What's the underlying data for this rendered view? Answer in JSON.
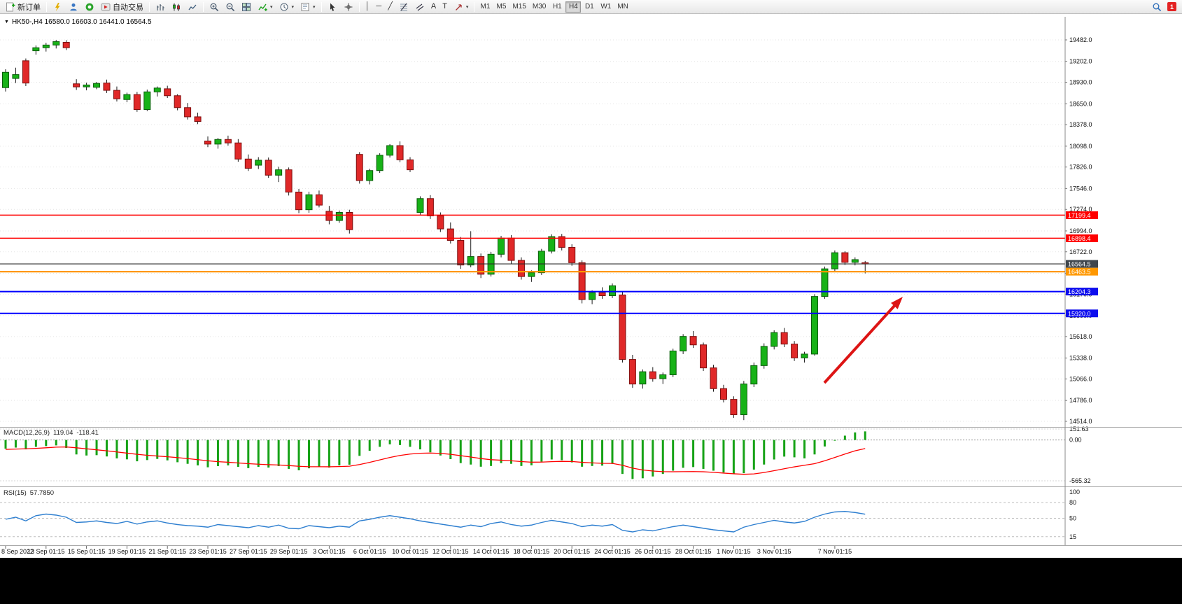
{
  "toolbar": {
    "new_order": "新订单",
    "autotrading": "自动交易",
    "timeframes": [
      "M1",
      "M5",
      "M15",
      "M30",
      "H1",
      "H4",
      "D1",
      "W1",
      "MN"
    ],
    "active_timeframe": "H4",
    "notification_count": "1"
  },
  "icons": {
    "caret_down": "▼",
    "menu_caret": "▾",
    "vline": "│",
    "hline": "─",
    "trend": "╱",
    "text": "A",
    "text_label": "T"
  },
  "chart": {
    "title": "HK50-,H4 16580.0 16603.0 16441.0 16564.5",
    "symbol": "HK50-",
    "period": "H4"
  },
  "chart_data": {
    "type": "candlestick",
    "main": {
      "y_axis": [
        19482.0,
        19202.0,
        18930.0,
        18650.0,
        18378.0,
        18098.0,
        17826.0,
        17546.0,
        17274.0,
        16994.0,
        16722.0,
        16442.0,
        16170.0,
        15890.0,
        15618.0,
        15338.0,
        15066.0,
        14786.0,
        14514.0
      ],
      "candles": [
        [
          18860,
          19100,
          18810,
          19060
        ],
        [
          18980,
          19120,
          18920,
          19030
        ],
        [
          19210,
          19240,
          18880,
          18920
        ],
        [
          19340,
          19410,
          19290,
          19380
        ],
        [
          19380,
          19445,
          19330,
          19415
        ],
        [
          19415,
          19480,
          19370,
          19460
        ],
        [
          19450,
          19478,
          19350,
          19380
        ],
        [
          18910,
          18970,
          18830,
          18870
        ],
        [
          18870,
          18925,
          18825,
          18895
        ],
        [
          18865,
          18935,
          18840,
          18915
        ],
        [
          18920,
          18965,
          18790,
          18825
        ],
        [
          18825,
          18875,
          18680,
          18715
        ],
        [
          18705,
          18795,
          18670,
          18770
        ],
        [
          18770,
          18805,
          18545,
          18575
        ],
        [
          18575,
          18835,
          18555,
          18805
        ],
        [
          18805,
          18875,
          18745,
          18855
        ],
        [
          18845,
          18885,
          18725,
          18755
        ],
        [
          18755,
          18775,
          18565,
          18600
        ],
        [
          18600,
          18660,
          18445,
          18480
        ],
        [
          18480,
          18535,
          18385,
          18420
        ],
        [
          18165,
          18225,
          18085,
          18125
        ],
        [
          18125,
          18205,
          18065,
          18185
        ],
        [
          18185,
          18235,
          18105,
          18140
        ],
        [
          18140,
          18190,
          17895,
          17930
        ],
        [
          17930,
          17990,
          17775,
          17810
        ],
        [
          17850,
          17955,
          17800,
          17915
        ],
        [
          17915,
          17950,
          17685,
          17720
        ],
        [
          17720,
          17830,
          17630,
          17790
        ],
        [
          17790,
          17820,
          17455,
          17500
        ],
        [
          17500,
          17540,
          17225,
          17270
        ],
        [
          17270,
          17505,
          17230,
          17465
        ],
        [
          17465,
          17520,
          17300,
          17330
        ],
        [
          17250,
          17320,
          17080,
          17130
        ],
        [
          17130,
          17260,
          17100,
          17235
        ],
        [
          17235,
          17270,
          16960,
          17010
        ],
        [
          17990,
          18020,
          17610,
          17650
        ],
        [
          17650,
          17805,
          17600,
          17780
        ],
        [
          17780,
          18005,
          17750,
          17980
        ],
        [
          17980,
          18125,
          17950,
          18105
        ],
        [
          18105,
          18160,
          17890,
          17920
        ],
        [
          17920,
          17955,
          17760,
          17790
        ],
        [
          17235,
          17445,
          17205,
          17415
        ],
        [
          17415,
          17460,
          17150,
          17190
        ],
        [
          17190,
          17235,
          16980,
          17020
        ],
        [
          17020,
          17105,
          16830,
          16870
        ],
        [
          16870,
          16915,
          16500,
          16550
        ],
        [
          16550,
          16990,
          16520,
          16660
        ],
        [
          16660,
          16700,
          16380,
          16430
        ],
        [
          16430,
          16720,
          16400,
          16690
        ],
        [
          16690,
          16930,
          16650,
          16900
        ],
        [
          16900,
          16940,
          16560,
          16610
        ],
        [
          16610,
          16650,
          16360,
          16400
        ],
        [
          16400,
          16480,
          16330,
          16450
        ],
        [
          16450,
          16760,
          16420,
          16730
        ],
        [
          16730,
          16950,
          16700,
          16920
        ],
        [
          16920,
          16955,
          16740,
          16780
        ],
        [
          16780,
          16820,
          16540,
          16580
        ],
        [
          16580,
          16610,
          16050,
          16100
        ],
        [
          16100,
          16220,
          16040,
          16190
        ],
        [
          16190,
          16260,
          16110,
          16150
        ],
        [
          16150,
          16310,
          16120,
          16280
        ],
        [
          16160,
          16200,
          15280,
          15320
        ],
        [
          15320,
          15380,
          14950,
          15000
        ],
        [
          15000,
          15190,
          14940,
          15160
        ],
        [
          15160,
          15220,
          15030,
          15070
        ],
        [
          15070,
          15150,
          15000,
          15120
        ],
        [
          15120,
          15460,
          15090,
          15430
        ],
        [
          15430,
          15650,
          15390,
          15620
        ],
        [
          15620,
          15690,
          15470,
          15510
        ],
        [
          15510,
          15540,
          15170,
          15210
        ],
        [
          15210,
          15250,
          14900,
          14940
        ],
        [
          14940,
          14990,
          14760,
          14800
        ],
        [
          14800,
          14840,
          14560,
          14600
        ],
        [
          14600,
          15040,
          14530,
          15000
        ],
        [
          15000,
          15280,
          14960,
          15240
        ],
        [
          15240,
          15530,
          15200,
          15490
        ],
        [
          15490,
          15700,
          15450,
          15670
        ],
        [
          15670,
          15730,
          15480,
          15520
        ],
        [
          15520,
          15560,
          15300,
          15340
        ],
        [
          15340,
          15420,
          15280,
          15390
        ],
        [
          15390,
          16170,
          15370,
          16140
        ],
        [
          16140,
          16530,
          16110,
          16500
        ],
        [
          16500,
          16740,
          16470,
          16710
        ],
        [
          16710,
          16730,
          16550,
          16585
        ],
        [
          16585,
          16650,
          16545,
          16620
        ],
        [
          16580,
          16603,
          16441,
          16564.5
        ]
      ],
      "colors": {
        "up": "#17b217",
        "down": "#e02828",
        "up_border": "#0a5c0a",
        "down_border": "#7e0e0e",
        "wick": "#1c1c1c"
      },
      "price_lines": [
        {
          "value": 17199.4,
          "color": "#FF0000",
          "width": 1.5,
          "tag": "#FF0000"
        },
        {
          "value": 16898.4,
          "color": "#FF0000",
          "width": 1.5,
          "tag": "#FF0000"
        },
        {
          "value": 16463.5,
          "color": "#FF9800",
          "width": 2.2,
          "tag": "#FF9800"
        },
        {
          "value": 16204.3,
          "color": "#0000FF",
          "width": 2,
          "tag": "#0D0DEE"
        },
        {
          "value": 15920.0,
          "color": "#0000FF",
          "width": 2,
          "tag": "#0D0DEE"
        }
      ],
      "current_price": {
        "value": 16564.5,
        "line_color": "#2b2b2b",
        "tag": "#3F464D"
      },
      "arrow": {
        "color": "#DD1414"
      }
    },
    "macd": {
      "label": "MACD(12,26,9)",
      "value_main": "119.04",
      "value_signal": "-118.41",
      "scale": [
        151.63,
        0.0,
        -565.32
      ],
      "histogram": [
        -120,
        -105,
        -130,
        -95,
        -85,
        -75,
        -110,
        -200,
        -215,
        -210,
        -228,
        -255,
        -268,
        -295,
        -278,
        -262,
        -282,
        -308,
        -330,
        -352,
        -378,
        -362,
        -352,
        -372,
        -390,
        -372,
        -382,
        -362,
        -400,
        -420,
        -392,
        -372,
        -382,
        -352,
        -342,
        -220,
        -150,
        -95,
        -60,
        -70,
        -95,
        -130,
        -170,
        -215,
        -265,
        -320,
        -340,
        -370,
        -360,
        -320,
        -330,
        -360,
        -350,
        -300,
        -270,
        -280,
        -310,
        -370,
        -360,
        -355,
        -330,
        -470,
        -540,
        -530,
        -505,
        -470,
        -425,
        -385,
        -375,
        -400,
        -425,
        -450,
        -465,
        -460,
        -410,
        -340,
        -270,
        -230,
        -240,
        -255,
        -200,
        -90,
        -10,
        60,
        105,
        119.04
      ],
      "signal": [
        -130,
        -126,
        -122,
        -116,
        -108,
        -99,
        -97,
        -108,
        -122,
        -136,
        -150,
        -166,
        -182,
        -198,
        -212,
        -222,
        -232,
        -244,
        -258,
        -272,
        -288,
        -300,
        -308,
        -318,
        -328,
        -335,
        -342,
        -346,
        -354,
        -364,
        -370,
        -370,
        -371,
        -368,
        -363,
        -340,
        -310,
        -276,
        -242,
        -214,
        -195,
        -184,
        -181,
        -186,
        -198,
        -217,
        -236,
        -257,
        -273,
        -280,
        -288,
        -299,
        -307,
        -306,
        -300,
        -296,
        -298,
        -309,
        -317,
        -323,
        -324,
        -350,
        -390,
        -415,
        -430,
        -438,
        -440,
        -438,
        -437,
        -440,
        -448,
        -458,
        -468,
        -475,
        -470,
        -450,
        -425,
        -398,
        -372,
        -350,
        -328,
        -288,
        -242,
        -195,
        -150,
        -118.41
      ],
      "colors": {
        "histogram": "#16a216",
        "signal": "#FF0000"
      }
    },
    "rsi": {
      "label": "RSI(15)",
      "value": "57.7850",
      "levels": [
        100,
        80,
        50,
        15
      ],
      "values": [
        48,
        52,
        45,
        55,
        58,
        56,
        52,
        42,
        43,
        45,
        42,
        40,
        44,
        39,
        43,
        45,
        41,
        38,
        36,
        35,
        33,
        38,
        36,
        34,
        32,
        36,
        33,
        37,
        31,
        30,
        36,
        34,
        32,
        35,
        33,
        45,
        48,
        52,
        55,
        52,
        49,
        45,
        42,
        39,
        36,
        33,
        37,
        34,
        40,
        43,
        38,
        35,
        37,
        42,
        46,
        43,
        40,
        34,
        37,
        35,
        38,
        27,
        24,
        28,
        26,
        30,
        34,
        37,
        34,
        31,
        28,
        26,
        24,
        33,
        38,
        42,
        46,
        43,
        41,
        44,
        52,
        58,
        62,
        63,
        61,
        57.785
      ],
      "color": "#2e7fd0"
    },
    "x_labels": [
      {
        "text": "8 Sep 2022",
        "i": 0
      },
      {
        "text": "13 Sep 01:15",
        "i": 4
      },
      {
        "text": "15 Sep 01:15",
        "i": 8
      },
      {
        "text": "19 Sep 01:15",
        "i": 12
      },
      {
        "text": "21 Sep 01:15",
        "i": 16
      },
      {
        "text": "23 Sep 01:15",
        "i": 20
      },
      {
        "text": "27 Sep 01:15",
        "i": 24
      },
      {
        "text": "29 Sep 01:15",
        "i": 28
      },
      {
        "text": "3 Oct 01:15",
        "i": 32
      },
      {
        "text": "6 Oct 01:15",
        "i": 36
      },
      {
        "text": "10 Oct 01:15",
        "i": 40
      },
      {
        "text": "12 Oct 01:15",
        "i": 44
      },
      {
        "text": "14 Oct 01:15",
        "i": 48
      },
      {
        "text": "18 Oct 01:15",
        "i": 52
      },
      {
        "text": "20 Oct 01:15",
        "i": 56
      },
      {
        "text": "24 Oct 01:15",
        "i": 60
      },
      {
        "text": "26 Oct 01:15",
        "i": 64
      },
      {
        "text": "28 Oct 01:15",
        "i": 68
      },
      {
        "text": "1 Nov 01:15",
        "i": 72
      },
      {
        "text": "3 Nov 01:15",
        "i": 76
      },
      {
        "text": "7 Nov 01:15",
        "i": 82
      }
    ]
  }
}
